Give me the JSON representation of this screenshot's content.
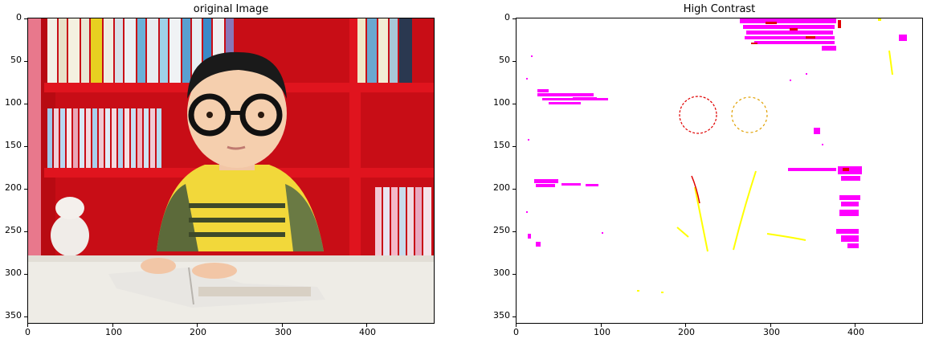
{
  "figure": {
    "left": {
      "title": "original Image",
      "y_ticks": [
        "0",
        "50",
        "100",
        "150",
        "200",
        "250",
        "300",
        "350"
      ],
      "x_ticks": [
        "0",
        "100",
        "200",
        "300",
        "400"
      ],
      "image_description": "photo"
    },
    "right": {
      "title": "High Contrast",
      "y_ticks": [
        "0",
        "50",
        "100",
        "150",
        "200",
        "250",
        "300",
        "350"
      ],
      "x_ticks": [
        "0",
        "100",
        "200",
        "300",
        "400"
      ]
    },
    "colors": {
      "magenta": "#ff00ff",
      "red": "#e00000",
      "yellow": "#ffff00",
      "shelf_red": "#d3101a",
      "carpet": "#eeece6"
    }
  }
}
